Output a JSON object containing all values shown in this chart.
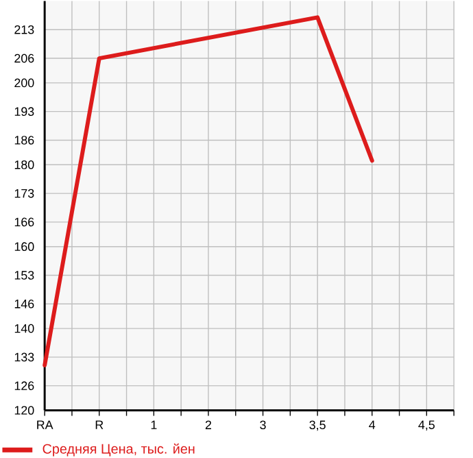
{
  "chart_data": {
    "type": "line",
    "categories": [
      "RA",
      "R",
      "1",
      "2",
      "3",
      "3,5",
      "4",
      "4,5"
    ],
    "series": [
      {
        "name": "Средняя Цена, тыс. йен",
        "color": "#dd1c1c",
        "values": [
          131,
          206,
          null,
          null,
          null,
          216,
          181,
          null
        ]
      }
    ],
    "ylim": [
      120,
      220
    ],
    "yticks": [
      120,
      126,
      133,
      140,
      146,
      153,
      160,
      166,
      173,
      180,
      186,
      193,
      200,
      206,
      213
    ],
    "grid": true,
    "legend": "bottom",
    "marker": "none",
    "line_style": "solid"
  }
}
